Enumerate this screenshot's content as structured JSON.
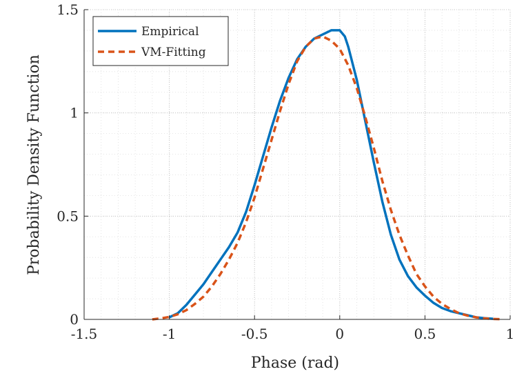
{
  "chart_data": {
    "type": "line",
    "title": "",
    "xlabel": "Phase (rad)",
    "ylabel": "Probability Density Function",
    "xlim": [
      -1.5,
      1
    ],
    "ylim": [
      0,
      1.5
    ],
    "xticks": [
      -1.5,
      -1,
      -0.5,
      0,
      0.5,
      1
    ],
    "xtick_labels": [
      "-1.5",
      "-1",
      "-0.5",
      "0",
      "0.5",
      "1"
    ],
    "yticks": [
      0,
      0.5,
      1,
      1.5
    ],
    "ytick_labels": [
      "0",
      "0.5",
      "1",
      "1.5"
    ],
    "grid": true,
    "minor_grid": true,
    "legend_position": "top-left",
    "series": [
      {
        "name": "Empirical",
        "color": "#0072BD",
        "style": "solid",
        "x": [
          -1.0,
          -0.95,
          -0.9,
          -0.85,
          -0.8,
          -0.75,
          -0.7,
          -0.65,
          -0.6,
          -0.55,
          -0.5,
          -0.45,
          -0.4,
          -0.35,
          -0.3,
          -0.25,
          -0.2,
          -0.15,
          -0.1,
          -0.05,
          0.0,
          0.03,
          0.05,
          0.1,
          0.15,
          0.2,
          0.25,
          0.3,
          0.35,
          0.4,
          0.45,
          0.5,
          0.55,
          0.6,
          0.65,
          0.7,
          0.75,
          0.8,
          0.85,
          0.9
        ],
        "y": [
          0.01,
          0.03,
          0.07,
          0.12,
          0.17,
          0.23,
          0.29,
          0.35,
          0.42,
          0.52,
          0.65,
          0.79,
          0.93,
          1.06,
          1.17,
          1.26,
          1.32,
          1.36,
          1.38,
          1.4,
          1.4,
          1.37,
          1.32,
          1.16,
          0.96,
          0.76,
          0.57,
          0.41,
          0.29,
          0.21,
          0.155,
          0.115,
          0.08,
          0.055,
          0.04,
          0.03,
          0.02,
          0.01,
          0.006,
          0.003
        ]
      },
      {
        "name": "VM-Fitting",
        "color": "#D95319",
        "style": "dashed",
        "x": [
          -1.1,
          -1.05,
          -1.0,
          -0.95,
          -0.9,
          -0.85,
          -0.8,
          -0.75,
          -0.7,
          -0.65,
          -0.6,
          -0.55,
          -0.5,
          -0.45,
          -0.4,
          -0.35,
          -0.3,
          -0.25,
          -0.2,
          -0.15,
          -0.1,
          -0.05,
          0.0,
          0.05,
          0.1,
          0.15,
          0.2,
          0.25,
          0.3,
          0.35,
          0.4,
          0.45,
          0.5,
          0.55,
          0.6,
          0.65,
          0.7,
          0.75,
          0.8,
          0.85,
          0.9,
          0.95
        ],
        "y": [
          0.0,
          0.005,
          0.012,
          0.025,
          0.045,
          0.075,
          0.11,
          0.16,
          0.22,
          0.29,
          0.37,
          0.47,
          0.59,
          0.73,
          0.87,
          1.01,
          1.14,
          1.25,
          1.32,
          1.36,
          1.37,
          1.35,
          1.31,
          1.23,
          1.12,
          0.98,
          0.83,
          0.67,
          0.53,
          0.41,
          0.31,
          0.22,
          0.16,
          0.11,
          0.075,
          0.05,
          0.03,
          0.018,
          0.01,
          0.005,
          0.002,
          0.001
        ]
      }
    ]
  }
}
